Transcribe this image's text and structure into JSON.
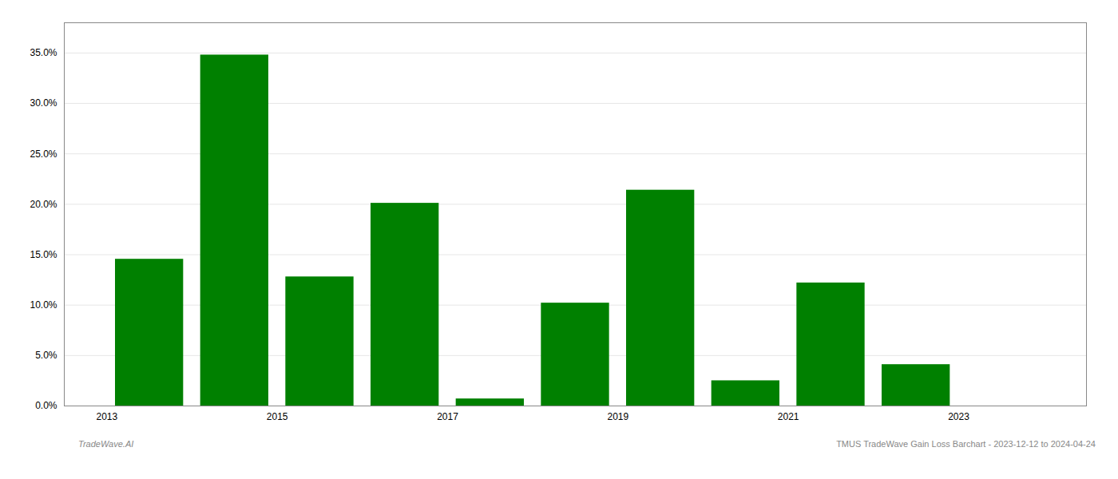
{
  "chart_data": {
    "type": "bar",
    "x": [
      2013.5,
      2014.5,
      2015.5,
      2016.5,
      2017.5,
      2018.5,
      2019.5,
      2020.5,
      2021.5,
      2022.5,
      2023.5
    ],
    "values": [
      0.1455,
      0.348,
      0.128,
      0.201,
      0.007,
      0.102,
      0.214,
      0.025,
      0.122,
      0.041,
      0.0
    ],
    "color": "#008000",
    "xlim": [
      2012.5,
      2024.5
    ],
    "xticks": [
      2013,
      2015,
      2017,
      2019,
      2021,
      2023
    ],
    "ylim": [
      0,
      0.38
    ],
    "yticks": [
      {
        "value": 0.0,
        "label": "0.0%"
      },
      {
        "value": 0.05,
        "label": "5.0%"
      },
      {
        "value": 0.1,
        "label": "10.0%"
      },
      {
        "value": 0.15,
        "label": "15.0%"
      },
      {
        "value": 0.2,
        "label": "20.0%"
      },
      {
        "value": 0.25,
        "label": "25.0%"
      },
      {
        "value": 0.3,
        "label": "30.0%"
      },
      {
        "value": 0.35,
        "label": "35.0%"
      }
    ],
    "grid": true,
    "annotations": [
      "TradeWave.AI",
      "TMUS TradeWave Gain Loss Barchart - 2023-12-12 to 2024-04-24"
    ]
  }
}
